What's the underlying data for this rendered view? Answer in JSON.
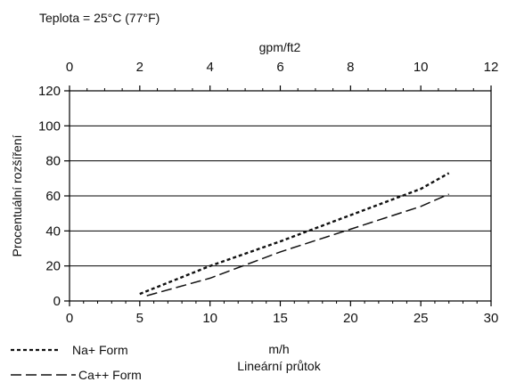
{
  "chart_data": {
    "type": "line",
    "note": "Teplota  = 25°C (77°F)",
    "top_axis": {
      "label": "gpm/ft2",
      "lim": [
        0,
        12
      ],
      "ticks": [
        "0",
        "2",
        "4",
        "6",
        "8",
        "10",
        "12"
      ]
    },
    "x_axis": {
      "label": "m/h",
      "title": "Lineární průtok",
      "lim": [
        0,
        30
      ],
      "ticks": [
        "0",
        "5",
        "10",
        "15",
        "20",
        "25",
        "30"
      ]
    },
    "y_axis": {
      "label": "Procentuální rozšíření",
      "lim": [
        0,
        120
      ],
      "ticks": [
        "0",
        "20",
        "40",
        "60",
        "80",
        "100",
        "120"
      ]
    },
    "grid": "horizontal",
    "legend": "bottom-left",
    "series": [
      {
        "name": "Na+ Form",
        "style": "dotted",
        "color": "#111111",
        "x": [
          5.0,
          10,
          15,
          20,
          25,
          27
        ],
        "y": [
          4,
          20,
          34,
          49,
          64,
          73
        ]
      },
      {
        "name": "Ca++ Form",
        "style": "dashed",
        "color": "#111111",
        "x": [
          5.5,
          10,
          15,
          20,
          25,
          27
        ],
        "y": [
          3,
          13,
          28,
          41,
          54,
          61
        ]
      }
    ]
  }
}
